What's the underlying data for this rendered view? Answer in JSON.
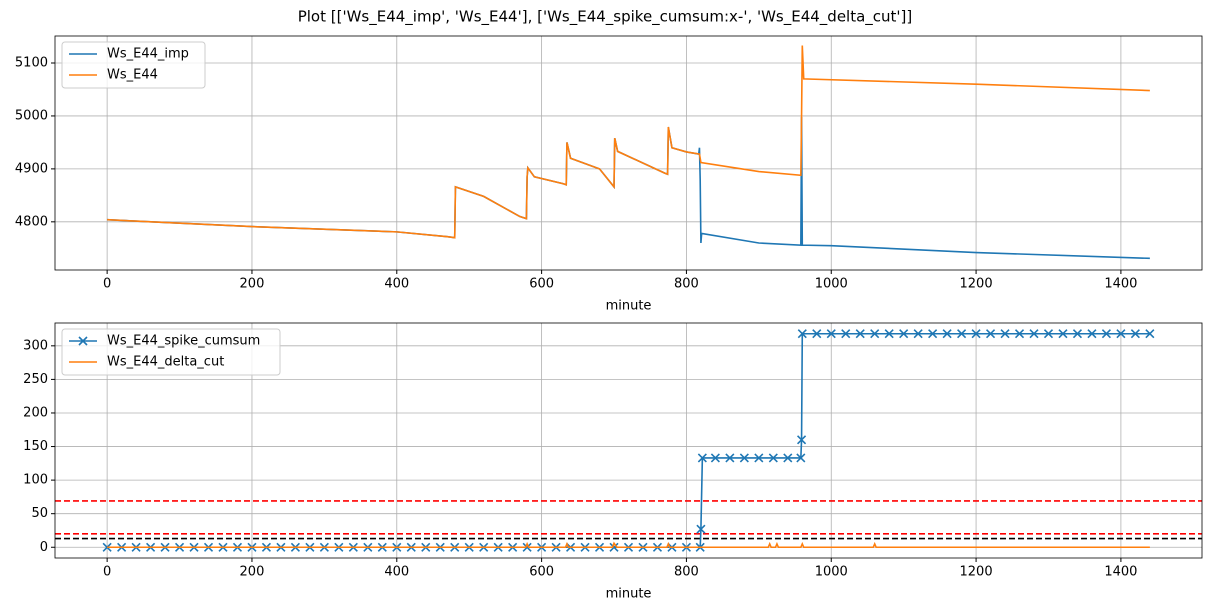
{
  "title": "Plot [['Ws_E44_imp', 'Ws_E44'], ['Ws_E44_spike_cumsum:x-', 'Ws_E44_delta_cut']]",
  "chart_data": [
    {
      "type": "line",
      "xlabel": "minute",
      "xlim": [
        -72,
        1512
      ],
      "ylim": [
        4709,
        5151
      ],
      "xticks": [
        0,
        200,
        400,
        600,
        800,
        1000,
        1200,
        1400
      ],
      "yticks": [
        4800,
        4900,
        5000,
        5100
      ],
      "grid": true,
      "legend": "upper left",
      "series": [
        {
          "name": "Ws_E44_imp",
          "color": "#1f77b4",
          "x": [
            0,
            200,
            400,
            470,
            480,
            481,
            520,
            570,
            579,
            580,
            581,
            590,
            630,
            634,
            635,
            640,
            680,
            700,
            701,
            705,
            770,
            774,
            775,
            780,
            800,
            817,
            818,
            819,
            820,
            821,
            900,
            958,
            959,
            960,
            1000,
            1200,
            1440
          ],
          "values": [
            4804,
            4791,
            4781,
            4772,
            4770,
            4866,
            4848,
            4810,
            4806,
            4885,
            4902,
            4885,
            4872,
            4870,
            4950,
            4920,
            4900,
            4866,
            4958,
            4933,
            4892,
            4890,
            4979,
            4940,
            4932,
            4928,
            4940,
            4880,
            4760,
            4778,
            4760,
            4756,
            4998,
            4756,
            4755,
            4742,
            4731
          ]
        },
        {
          "name": "Ws_E44",
          "color": "#ff7f0e",
          "x": [
            0,
            200,
            400,
            470,
            480,
            481,
            520,
            570,
            579,
            580,
            581,
            590,
            630,
            634,
            635,
            640,
            680,
            700,
            701,
            705,
            770,
            774,
            775,
            780,
            800,
            818,
            820,
            900,
            958,
            959,
            960,
            962,
            1200,
            1440
          ],
          "values": [
            4804,
            4791,
            4781,
            4772,
            4770,
            4866,
            4848,
            4810,
            4806,
            4885,
            4902,
            4885,
            4872,
            4870,
            4950,
            4920,
            4900,
            4866,
            4958,
            4933,
            4892,
            4890,
            4979,
            4940,
            4932,
            4928,
            4912,
            4895,
            4888,
            5000,
            5133,
            5070,
            5060,
            5048
          ]
        }
      ]
    },
    {
      "type": "line",
      "xlabel": "minute",
      "xlim": [
        -72,
        1512
      ],
      "ylim": [
        -16,
        334
      ],
      "xticks": [
        0,
        200,
        400,
        600,
        800,
        1000,
        1200,
        1400
      ],
      "yticks": [
        0,
        50,
        100,
        150,
        200,
        250,
        300
      ],
      "grid": true,
      "legend": "upper left",
      "hlines": [
        {
          "value": 69,
          "color": "#ff0000"
        },
        {
          "value": 20,
          "color": "#ff0000"
        },
        {
          "value": 13,
          "color": "#000000"
        }
      ],
      "series": [
        {
          "name": "Ws_E44_spike_cumsum",
          "color": "#1f77b4",
          "marker": "x",
          "x": [
            0,
            20,
            40,
            60,
            80,
            100,
            120,
            140,
            160,
            180,
            200,
            220,
            240,
            260,
            280,
            300,
            320,
            340,
            360,
            380,
            400,
            420,
            440,
            460,
            480,
            500,
            520,
            540,
            560,
            580,
            600,
            620,
            640,
            660,
            680,
            700,
            720,
            740,
            760,
            780,
            800,
            819,
            820,
            822,
            840,
            860,
            880,
            900,
            920,
            940,
            958,
            959,
            960,
            980,
            1000,
            1020,
            1040,
            1060,
            1080,
            1100,
            1120,
            1140,
            1160,
            1180,
            1200,
            1220,
            1240,
            1260,
            1280,
            1300,
            1320,
            1340,
            1360,
            1380,
            1400,
            1420,
            1440
          ],
          "values": [
            0,
            0,
            0,
            0,
            0,
            0,
            0,
            0,
            0,
            0,
            0,
            0,
            0,
            0,
            0,
            0,
            0,
            0,
            0,
            0,
            0,
            0,
            0,
            0,
            0,
            0,
            0,
            0,
            0,
            0,
            0,
            0,
            0,
            0,
            0,
            0,
            0,
            0,
            0,
            0,
            0,
            0,
            27,
            133,
            133,
            133,
            133,
            133,
            133,
            133,
            133,
            160,
            318,
            318,
            318,
            318,
            318,
            318,
            318,
            318,
            318,
            318,
            318,
            318,
            318,
            318,
            318,
            318,
            318,
            318,
            318,
            318,
            318,
            318,
            318,
            318,
            318
          ]
        },
        {
          "name": "Ws_E44_delta_cut",
          "color": "#ff7f0e",
          "x": [
            0,
            578,
            580,
            582,
            633,
            635,
            637,
            698,
            700,
            704,
            773,
            775,
            777,
            913,
            915,
            917,
            923,
            925,
            927,
            958,
            960,
            962,
            1058,
            1060,
            1062,
            1440
          ],
          "values": [
            0,
            0,
            5,
            0,
            0,
            5,
            0,
            0,
            6,
            0,
            0,
            5,
            0,
            0,
            5,
            0,
            0,
            5,
            0,
            0,
            5,
            0,
            0,
            5,
            0,
            0
          ]
        }
      ]
    }
  ]
}
